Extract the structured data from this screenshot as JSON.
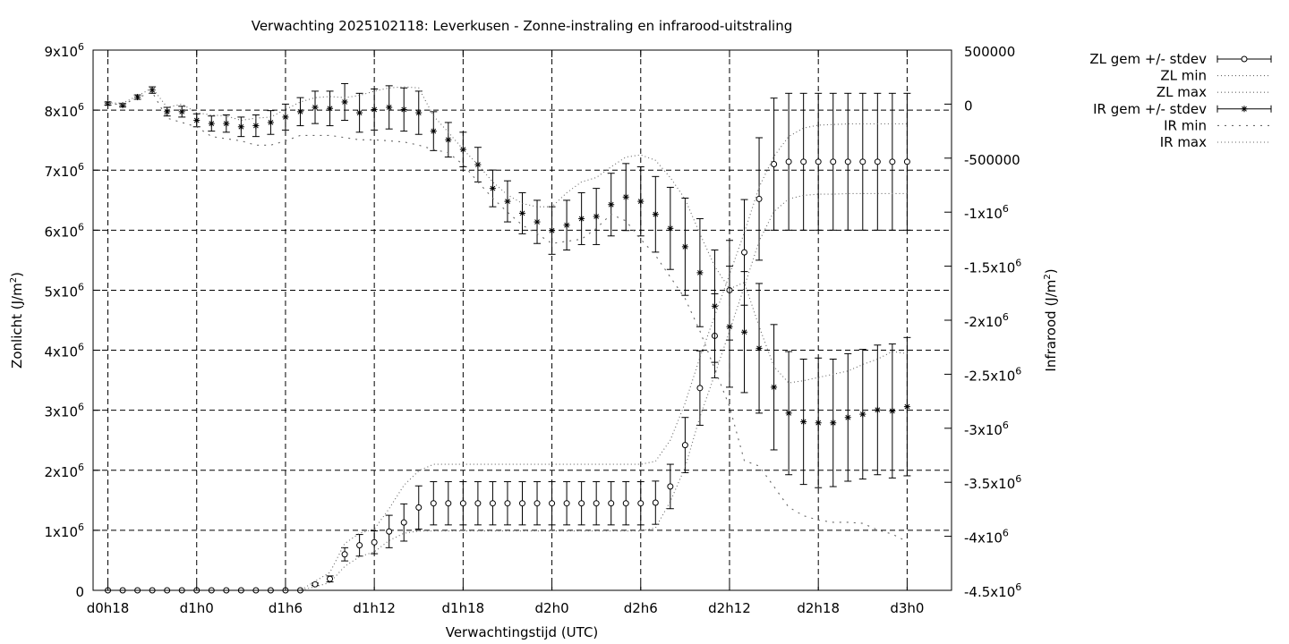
{
  "chart_data": {
    "type": "line",
    "title": "Verwachting 2025102118: Leverkusen - Zonne-instraling en infrarood-uitstraling",
    "xlabel": "Verwachtingstijd (UTC)",
    "ylabel": "Zonlicht (J/m²)",
    "y2label": "Infrarood (J/m²)",
    "xlim": [
      -1,
      57
    ],
    "ylim": [
      0,
      9000000
    ],
    "y2lim": [
      -4500000,
      500000
    ],
    "grid": true,
    "legend_position": "outside-right",
    "x_ticks": [
      {
        "x": 0,
        "label": "d0h18"
      },
      {
        "x": 6,
        "label": "d1h0"
      },
      {
        "x": 12,
        "label": "d1h6"
      },
      {
        "x": 18,
        "label": "d1h12"
      },
      {
        "x": 24,
        "label": "d1h18"
      },
      {
        "x": 30,
        "label": "d2h0"
      },
      {
        "x": 36,
        "label": "d2h6"
      },
      {
        "x": 42,
        "label": "d2h12"
      },
      {
        "x": 48,
        "label": "d2h18"
      },
      {
        "x": 54,
        "label": "d3h0"
      }
    ],
    "y_ticks": [
      {
        "v": 0,
        "b": "0",
        "e": ""
      },
      {
        "v": 1000000,
        "b": "1x10",
        "e": "6"
      },
      {
        "v": 2000000,
        "b": "2x10",
        "e": "6"
      },
      {
        "v": 3000000,
        "b": "3x10",
        "e": "6"
      },
      {
        "v": 4000000,
        "b": "4x10",
        "e": "6"
      },
      {
        "v": 5000000,
        "b": "5x10",
        "e": "6"
      },
      {
        "v": 6000000,
        "b": "6x10",
        "e": "6"
      },
      {
        "v": 7000000,
        "b": "7x10",
        "e": "6"
      },
      {
        "v": 8000000,
        "b": "8x10",
        "e": "6"
      },
      {
        "v": 9000000,
        "b": "9x10",
        "e": "6"
      }
    ],
    "y2_ticks": [
      {
        "v": 500000,
        "b": "500000",
        "e": ""
      },
      {
        "v": 0,
        "b": "0",
        "e": ""
      },
      {
        "v": -500000,
        "b": "-500000",
        "e": ""
      },
      {
        "v": -1000000,
        "b": "-1x10",
        "e": "6"
      },
      {
        "v": -1500000,
        "b": "-1.5x10",
        "e": "6"
      },
      {
        "v": -2000000,
        "b": "-2x10",
        "e": "6"
      },
      {
        "v": -2500000,
        "b": "-2.5x10",
        "e": "6"
      },
      {
        "v": -3000000,
        "b": "-3x10",
        "e": "6"
      },
      {
        "v": -3500000,
        "b": "-3.5x10",
        "e": "6"
      },
      {
        "v": -4000000,
        "b": "-4x10",
        "e": "6"
      },
      {
        "v": -4500000,
        "b": "-4.5x10",
        "e": "6"
      }
    ],
    "x": [
      0,
      1,
      2,
      3,
      4,
      5,
      6,
      7,
      8,
      9,
      10,
      11,
      12,
      13,
      14,
      15,
      16,
      17,
      18,
      19,
      20,
      21,
      22,
      23,
      24,
      25,
      26,
      27,
      28,
      29,
      30,
      31,
      32,
      33,
      34,
      35,
      36,
      37,
      38,
      39,
      40,
      41,
      42,
      43,
      44,
      45,
      46,
      47,
      48,
      49,
      50,
      51,
      52,
      53,
      54
    ],
    "series": [
      {
        "name": "ZL gem +/- stdev",
        "axis": "y",
        "marker": "circle",
        "values": [
          0,
          0,
          0,
          0,
          0,
          0,
          0,
          0,
          0,
          0,
          0,
          0,
          0,
          0,
          100000,
          190000,
          600000,
          750000,
          800000,
          980000,
          1130000,
          1380000,
          1450000,
          1450000,
          1450000,
          1450000,
          1450000,
          1450000,
          1450000,
          1450000,
          1450000,
          1450000,
          1450000,
          1450000,
          1450000,
          1450000,
          1450000,
          1460000,
          1730000,
          2420000,
          3370000,
          4240000,
          5000000,
          5630000,
          6520000,
          7100000,
          7140000,
          7140000,
          7140000,
          7140000,
          7140000,
          7140000,
          7140000,
          7140000,
          7140000
        ],
        "stdev": [
          0,
          0,
          0,
          0,
          0,
          0,
          0,
          0,
          0,
          0,
          0,
          0,
          0,
          0,
          20000,
          50000,
          110000,
          180000,
          190000,
          270000,
          310000,
          360000,
          360000,
          360000,
          360000,
          360000,
          360000,
          360000,
          360000,
          360000,
          360000,
          360000,
          360000,
          360000,
          360000,
          360000,
          360000,
          360000,
          370000,
          460000,
          620000,
          700000,
          830000,
          880000,
          1020000,
          1100000,
          1140000,
          1140000,
          1140000,
          1140000,
          1140000,
          1140000,
          1140000,
          1140000,
          1140000
        ]
      },
      {
        "name": "ZL min",
        "axis": "y",
        "dash": "1,3",
        "values": [
          0,
          0,
          0,
          0,
          0,
          0,
          0,
          0,
          0,
          0,
          0,
          0,
          0,
          0,
          60000,
          130000,
          400000,
          560000,
          640000,
          830000,
          950000,
          990000,
          990000,
          990000,
          990000,
          990000,
          990000,
          990000,
          990000,
          990000,
          990000,
          990000,
          990000,
          990000,
          990000,
          990000,
          990000,
          1040000,
          1480000,
          2050000,
          2890000,
          3590000,
          4320000,
          5060000,
          5820000,
          6310000,
          6520000,
          6580000,
          6600000,
          6600000,
          6610000,
          6610000,
          6610000,
          6610000,
          6610000
        ]
      },
      {
        "name": "ZL max",
        "axis": "y",
        "dash": "1,3",
        "values": [
          0,
          0,
          0,
          0,
          0,
          0,
          0,
          0,
          0,
          0,
          0,
          0,
          0,
          0,
          150000,
          300000,
          780000,
          950000,
          1020000,
          1360000,
          1750000,
          1990000,
          2100000,
          2100000,
          2100000,
          2100000,
          2100000,
          2100000,
          2100000,
          2100000,
          2100000,
          2100000,
          2100000,
          2100000,
          2100000,
          2100000,
          2100000,
          2150000,
          2500000,
          3120000,
          3880000,
          4570000,
          5260000,
          5960000,
          6720000,
          7230000,
          7560000,
          7700000,
          7750000,
          7760000,
          7770000,
          7770000,
          7770000,
          7770000,
          7770000
        ]
      },
      {
        "name": "IR gem +/- stdev",
        "axis": "y2",
        "marker": "star",
        "values": [
          5000,
          -10000,
          65000,
          130000,
          -70000,
          -70000,
          -150000,
          -180000,
          -180000,
          -210000,
          -200000,
          -170000,
          -120000,
          -70000,
          -30000,
          -40000,
          20000,
          -80000,
          -50000,
          -30000,
          -50000,
          -80000,
          -250000,
          -330000,
          -420000,
          -560000,
          -780000,
          -900000,
          -1010000,
          -1090000,
          -1170000,
          -1120000,
          -1060000,
          -1040000,
          -930000,
          -860000,
          -900000,
          -1020000,
          -1150000,
          -1320000,
          -1560000,
          -1870000,
          -2060000,
          -2110000,
          -2260000,
          -2620000,
          -2860000,
          -2940000,
          -2950000,
          -2950000,
          -2900000,
          -2870000,
          -2830000,
          -2840000,
          -2800000
        ],
        "stdev": [
          15000,
          15000,
          20000,
          30000,
          40000,
          50000,
          60000,
          70000,
          80000,
          90000,
          100000,
          110000,
          120000,
          130000,
          150000,
          160000,
          170000,
          180000,
          190000,
          200000,
          200000,
          200000,
          180000,
          160000,
          160000,
          160000,
          170000,
          190000,
          190000,
          200000,
          220000,
          230000,
          240000,
          260000,
          290000,
          310000,
          320000,
          350000,
          380000,
          450000,
          500000,
          520000,
          560000,
          560000,
          600000,
          580000,
          570000,
          580000,
          600000,
          590000,
          590000,
          600000,
          600000,
          620000,
          640000
        ]
      },
      {
        "name": "IR min",
        "axis": "y2",
        "dash": "2,6",
        "values": [
          5000,
          -5000,
          60000,
          110000,
          -130000,
          -170000,
          -210000,
          -300000,
          -320000,
          -340000,
          -380000,
          -380000,
          -340000,
          -290000,
          -290000,
          -290000,
          -310000,
          -330000,
          -330000,
          -340000,
          -350000,
          -380000,
          -420000,
          -450000,
          -560000,
          -720000,
          -870000,
          -1000000,
          -1120000,
          -1200000,
          -1290000,
          -1270000,
          -1250000,
          -1150000,
          -1020000,
          -1080000,
          -1250000,
          -1400000,
          -1600000,
          -1800000,
          -2100000,
          -2450000,
          -2800000,
          -3300000,
          -3350000,
          -3540000,
          -3730000,
          -3810000,
          -3850000,
          -3870000,
          -3870000,
          -3880000,
          -3940000,
          -3980000,
          -4050000
        ]
      },
      {
        "name": "IR max",
        "axis": "y2",
        "dash": "1,3",
        "values": [
          10000,
          10000,
          75000,
          150000,
          -30000,
          0,
          -80000,
          -100000,
          -110000,
          -150000,
          -130000,
          -120000,
          -50000,
          20000,
          60000,
          70000,
          60000,
          80000,
          120000,
          150000,
          160000,
          150000,
          -110000,
          -260000,
          -420000,
          -560000,
          -720000,
          -840000,
          -920000,
          -950000,
          -950000,
          -820000,
          -720000,
          -680000,
          -580000,
          -490000,
          -470000,
          -520000,
          -680000,
          -880000,
          -1200000,
          -1500000,
          -1710000,
          -1650000,
          -2060000,
          -2430000,
          -2580000,
          -2560000,
          -2530000,
          -2500000,
          -2470000,
          -2410000,
          -2360000,
          -2290000,
          -2310000
        ]
      }
    ]
  }
}
